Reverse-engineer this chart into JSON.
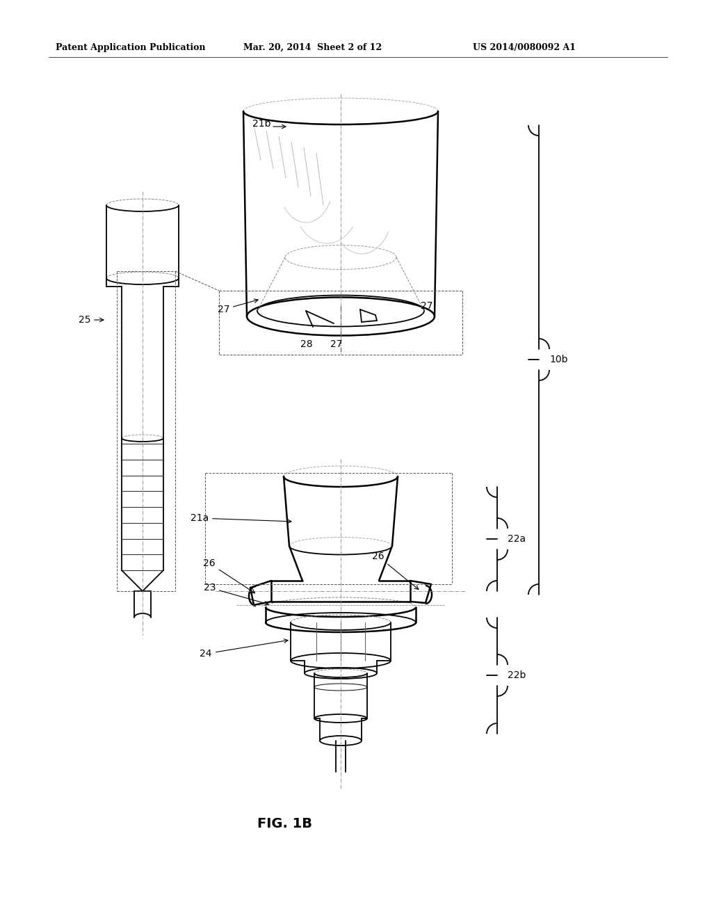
{
  "bg": "#ffffff",
  "header_left": "Patent Application Publication",
  "header_mid": "Mar. 20, 2014  Sheet 2 of 12",
  "header_right": "US 2014/0080092 A1",
  "fig_label": "FIG. 1B",
  "lw": 1.3,
  "lw_thin": 0.7,
  "lw_thick": 1.8
}
